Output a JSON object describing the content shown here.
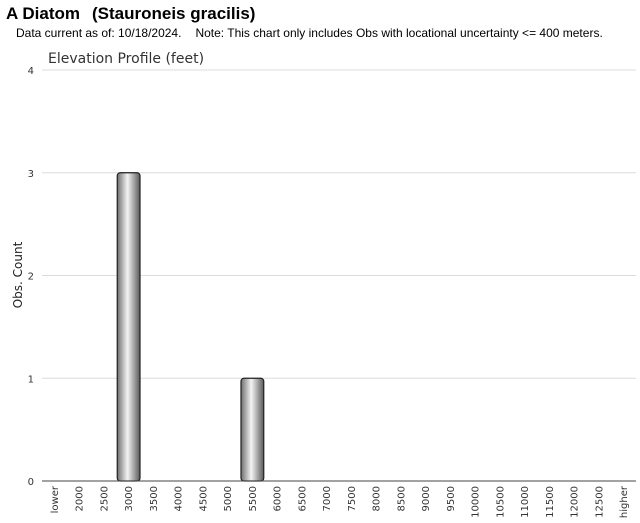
{
  "header": {
    "common_name": "A Diatom",
    "scientific_name": "(Stauroneis gracilis)",
    "data_current": "Data current as of: 10/18/2024.",
    "note": "Note: This chart only includes Obs with locational uncertainty <= 400 meters."
  },
  "chart_data": {
    "type": "bar",
    "title": "Elevation Profile (feet)",
    "xlabel": "",
    "ylabel": "Obs. Count",
    "categories": [
      "lower",
      "2000",
      "2500",
      "3000",
      "3500",
      "4000",
      "4500",
      "5000",
      "5500",
      "6000",
      "6500",
      "7000",
      "7500",
      "8000",
      "8500",
      "9000",
      "9500",
      "10000",
      "10500",
      "11000",
      "11500",
      "12000",
      "12500",
      "higher"
    ],
    "values": [
      0,
      0,
      0,
      3,
      0,
      0,
      0,
      0,
      1,
      0,
      0,
      0,
      0,
      0,
      0,
      0,
      0,
      0,
      0,
      0,
      0,
      0,
      0,
      0
    ],
    "ylim": [
      0,
      4
    ],
    "yticks": [
      0,
      1,
      2,
      3,
      4
    ],
    "grid": true,
    "bar_color": "#b0b0b0"
  }
}
